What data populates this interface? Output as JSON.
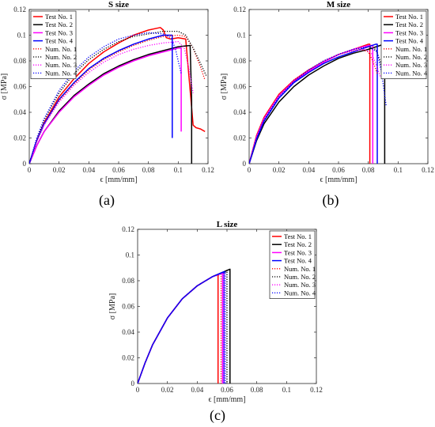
{
  "chart_data": [
    {
      "type": "line",
      "panel_label": "(a)",
      "title": "S size",
      "xlabel": "ϵ [mm/mm]",
      "ylabel": "σ [MPa]",
      "xlim": [
        0,
        0.12
      ],
      "ylim": [
        0,
        0.12
      ],
      "x_ticks": [
        "0",
        "0.02",
        "0.04",
        "0.06",
        "0.08",
        "0.1",
        "0.12"
      ],
      "y_ticks": [
        "0",
        "0.02",
        "0.04",
        "0.06",
        "0.08",
        "0.1",
        "0.12"
      ],
      "legend_position": "top-left",
      "series": [
        {
          "name": "Test No. 1",
          "color": "#ff0000",
          "style": "solid",
          "x": [
            0,
            0.005,
            0.01,
            0.02,
            0.03,
            0.04,
            0.05,
            0.06,
            0.07,
            0.08,
            0.088,
            0.09,
            0.092,
            0.095,
            0.1,
            0.105,
            0.11,
            0.112,
            0.115,
            0.118
          ],
          "y": [
            0,
            0.018,
            0.032,
            0.052,
            0.066,
            0.078,
            0.087,
            0.094,
            0.1,
            0.104,
            0.106,
            0.104,
            0.098,
            0.097,
            0.098,
            0.097,
            0.03,
            0.028,
            0.027,
            0.025
          ]
        },
        {
          "name": "Test No. 2",
          "color": "#000000",
          "style": "solid",
          "x": [
            0,
            0.005,
            0.01,
            0.02,
            0.03,
            0.04,
            0.05,
            0.06,
            0.07,
            0.08,
            0.09,
            0.1,
            0.108,
            0.109,
            0.109
          ],
          "y": [
            0,
            0.014,
            0.025,
            0.041,
            0.053,
            0.062,
            0.07,
            0.076,
            0.081,
            0.085,
            0.088,
            0.091,
            0.092,
            0.05,
            0
          ]
        },
        {
          "name": "Test No. 3",
          "color": "#ff00ff",
          "style": "solid",
          "x": [
            0,
            0.005,
            0.01,
            0.02,
            0.03,
            0.04,
            0.05,
            0.06,
            0.07,
            0.08,
            0.09,
            0.1,
            0.102,
            0.102
          ],
          "y": [
            0,
            0.014,
            0.025,
            0.04,
            0.052,
            0.061,
            0.069,
            0.075,
            0.08,
            0.084,
            0.087,
            0.09,
            0.09,
            0.025
          ]
        },
        {
          "name": "Test No. 4",
          "color": "#0000ff",
          "style": "solid",
          "x": [
            0,
            0.005,
            0.01,
            0.02,
            0.03,
            0.04,
            0.05,
            0.06,
            0.07,
            0.08,
            0.09,
            0.095,
            0.096,
            0.096
          ],
          "y": [
            0,
            0.018,
            0.031,
            0.05,
            0.063,
            0.074,
            0.082,
            0.088,
            0.093,
            0.097,
            0.1,
            0.1,
            0.1,
            0.02
          ]
        },
        {
          "name": "Num. No. 1",
          "color": "#ff0000",
          "style": "dotted",
          "x": [
            0,
            0.005,
            0.01,
            0.02,
            0.03,
            0.04,
            0.05,
            0.06,
            0.07,
            0.08,
            0.09,
            0.1,
            0.105,
            0.11,
            0.115,
            0.118
          ],
          "y": [
            0,
            0.017,
            0.03,
            0.049,
            0.062,
            0.073,
            0.081,
            0.087,
            0.092,
            0.096,
            0.099,
            0.1,
            0.099,
            0.09,
            0.075,
            0.065
          ]
        },
        {
          "name": "Num. No. 2",
          "color": "#000000",
          "style": "dotted",
          "x": [
            0,
            0.005,
            0.01,
            0.02,
            0.03,
            0.04,
            0.05,
            0.06,
            0.07,
            0.08,
            0.09,
            0.1,
            0.105,
            0.11,
            0.115,
            0.119
          ],
          "y": [
            0,
            0.019,
            0.034,
            0.055,
            0.07,
            0.081,
            0.089,
            0.095,
            0.099,
            0.101,
            0.103,
            0.103,
            0.1,
            0.09,
            0.078,
            0.068
          ]
        },
        {
          "name": "Num. No. 3",
          "color": "#ff00ff",
          "style": "dotted",
          "x": [
            0,
            0.005,
            0.01,
            0.02,
            0.03,
            0.04,
            0.05,
            0.06,
            0.07,
            0.08,
            0.09,
            0.1,
            0.104,
            0.107,
            0.11
          ],
          "y": [
            0,
            0.017,
            0.03,
            0.048,
            0.061,
            0.071,
            0.079,
            0.085,
            0.089,
            0.092,
            0.094,
            0.095,
            0.09,
            0.075,
            0.055
          ]
        },
        {
          "name": "Num. No. 4",
          "color": "#0000ff",
          "style": "dotted",
          "x": [
            0,
            0.005,
            0.01,
            0.02,
            0.03,
            0.04,
            0.05,
            0.06,
            0.07,
            0.08,
            0.09,
            0.095,
            0.098,
            0.1,
            0.102
          ],
          "y": [
            0,
            0.02,
            0.035,
            0.057,
            0.072,
            0.083,
            0.091,
            0.097,
            0.1,
            0.102,
            0.101,
            0.098,
            0.09,
            0.08,
            0.07
          ]
        }
      ]
    },
    {
      "type": "line",
      "panel_label": "(b)",
      "title": "M size",
      "xlabel": "ϵ [mm/mm]",
      "ylabel": "σ [MPa]",
      "xlim": [
        0,
        0.12
      ],
      "ylim": [
        0,
        0.12
      ],
      "x_ticks": [
        "0",
        "0.02",
        "0.04",
        "0.06",
        "0.08",
        "0.1",
        "0.12"
      ],
      "y_ticks": [
        "0",
        "0.02",
        "0.04",
        "0.06",
        "0.08",
        "0.1",
        "0.12"
      ],
      "legend_position": "top-right",
      "series": [
        {
          "name": "Test No. 1",
          "color": "#ff0000",
          "style": "solid",
          "x": [
            0,
            0.005,
            0.01,
            0.02,
            0.03,
            0.04,
            0.05,
            0.06,
            0.07,
            0.08,
            0.081,
            0.081
          ],
          "y": [
            0,
            0.022,
            0.036,
            0.054,
            0.065,
            0.073,
            0.079,
            0.085,
            0.089,
            0.093,
            0.093,
            0
          ]
        },
        {
          "name": "Test No. 2",
          "color": "#000000",
          "style": "solid",
          "x": [
            0,
            0.005,
            0.01,
            0.02,
            0.03,
            0.04,
            0.05,
            0.06,
            0.07,
            0.08,
            0.088,
            0.09,
            0.091,
            0.091
          ],
          "y": [
            0,
            0.018,
            0.031,
            0.048,
            0.06,
            0.069,
            0.076,
            0.082,
            0.086,
            0.089,
            0.092,
            0.093,
            0.093,
            0
          ]
        },
        {
          "name": "Test No. 3",
          "color": "#ff00ff",
          "style": "solid",
          "x": [
            0,
            0.005,
            0.01,
            0.02,
            0.03,
            0.04,
            0.05,
            0.06,
            0.07,
            0.08,
            0.083,
            0.083
          ],
          "y": [
            0,
            0.021,
            0.035,
            0.053,
            0.064,
            0.072,
            0.079,
            0.085,
            0.089,
            0.092,
            0.092,
            0
          ]
        },
        {
          "name": "Test No. 4",
          "color": "#0000ff",
          "style": "solid",
          "x": [
            0,
            0.005,
            0.01,
            0.02,
            0.03,
            0.04,
            0.05,
            0.06,
            0.07,
            0.08,
            0.085,
            0.086,
            0.086
          ],
          "y": [
            0,
            0.019,
            0.033,
            0.051,
            0.063,
            0.071,
            0.078,
            0.083,
            0.087,
            0.091,
            0.093,
            0.093,
            0
          ]
        },
        {
          "name": "Num. No. 1",
          "color": "#ff0000",
          "style": "dotted",
          "x": [
            0,
            0.005,
            0.01,
            0.02,
            0.03,
            0.04,
            0.05,
            0.06,
            0.07,
            0.075,
            0.08,
            0.083,
            0.086
          ],
          "y": [
            0,
            0.022,
            0.036,
            0.054,
            0.065,
            0.073,
            0.08,
            0.085,
            0.088,
            0.089,
            0.087,
            0.08,
            0.07
          ]
        },
        {
          "name": "Num. No. 2",
          "color": "#000000",
          "style": "dotted",
          "x": [
            0,
            0.005,
            0.01,
            0.02,
            0.03,
            0.04,
            0.05,
            0.06,
            0.07,
            0.08,
            0.085,
            0.088,
            0.09
          ],
          "y": [
            0,
            0.02,
            0.034,
            0.052,
            0.064,
            0.073,
            0.08,
            0.085,
            0.089,
            0.091,
            0.089,
            0.08,
            0.065
          ]
        },
        {
          "name": "Num. No. 3",
          "color": "#ff00ff",
          "style": "dotted",
          "x": [
            0,
            0.005,
            0.01,
            0.02,
            0.03,
            0.04,
            0.05,
            0.06,
            0.07,
            0.078,
            0.082,
            0.085,
            0.088
          ],
          "y": [
            0,
            0.021,
            0.035,
            0.053,
            0.065,
            0.073,
            0.08,
            0.085,
            0.088,
            0.089,
            0.086,
            0.078,
            0.068
          ]
        },
        {
          "name": "Num. No. 4",
          "color": "#0000ff",
          "style": "dotted",
          "x": [
            0,
            0.005,
            0.01,
            0.02,
            0.03,
            0.04,
            0.05,
            0.06,
            0.07,
            0.08,
            0.086,
            0.089,
            0.092
          ],
          "y": [
            0,
            0.02,
            0.034,
            0.052,
            0.064,
            0.073,
            0.08,
            0.085,
            0.089,
            0.091,
            0.087,
            0.07,
            0.045
          ]
        }
      ]
    },
    {
      "type": "line",
      "panel_label": "(c)",
      "title": "L size",
      "xlabel": "ϵ [mm/mm]",
      "ylabel": "σ [MPa]",
      "xlim": [
        0,
        0.12
      ],
      "ylim": [
        0,
        0.12
      ],
      "x_ticks": [
        "0",
        "0.02",
        "0.04",
        "0.06",
        "0.08",
        "0.1",
        "0.12"
      ],
      "y_ticks": [
        "0",
        "0.02",
        "0.04",
        "0.06",
        "0.08",
        "0.1",
        "0.12"
      ],
      "legend_position": "top-right",
      "series": [
        {
          "name": "Test No. 1",
          "color": "#ff0000",
          "style": "solid",
          "x": [
            0,
            0.005,
            0.01,
            0.02,
            0.03,
            0.04,
            0.05,
            0.054,
            0.054
          ],
          "y": [
            0,
            0.016,
            0.03,
            0.051,
            0.066,
            0.076,
            0.083,
            0.085,
            0
          ]
        },
        {
          "name": "Test No. 2",
          "color": "#000000",
          "style": "solid",
          "x": [
            0,
            0.005,
            0.01,
            0.02,
            0.03,
            0.04,
            0.05,
            0.06,
            0.062,
            0.062
          ],
          "y": [
            0,
            0.016,
            0.03,
            0.051,
            0.066,
            0.076,
            0.083,
            0.088,
            0.089,
            0
          ]
        },
        {
          "name": "Test No. 3",
          "color": "#ff00ff",
          "style": "solid",
          "x": [
            0,
            0.005,
            0.01,
            0.02,
            0.03,
            0.04,
            0.05,
            0.057,
            0.057
          ],
          "y": [
            0,
            0.016,
            0.03,
            0.051,
            0.066,
            0.076,
            0.083,
            0.086,
            0
          ]
        },
        {
          "name": "Test No. 4",
          "color": "#0000ff",
          "style": "solid",
          "x": [
            0,
            0.005,
            0.01,
            0.02,
            0.03,
            0.04,
            0.05,
            0.058,
            0.058
          ],
          "y": [
            0,
            0.016,
            0.03,
            0.051,
            0.066,
            0.076,
            0.083,
            0.087,
            0
          ]
        },
        {
          "name": "Num. No. 1",
          "color": "#ff0000",
          "style": "dotted",
          "x": [
            0,
            0.005,
            0.01,
            0.02,
            0.03,
            0.04,
            0.05,
            0.056,
            0.056
          ],
          "y": [
            0,
            0.016,
            0.03,
            0.051,
            0.066,
            0.076,
            0.083,
            0.085,
            0
          ]
        },
        {
          "name": "Num. No. 2",
          "color": "#000000",
          "style": "dotted",
          "x": [
            0,
            0.005,
            0.01,
            0.02,
            0.03,
            0.04,
            0.05,
            0.06,
            0.06
          ],
          "y": [
            0,
            0.016,
            0.03,
            0.051,
            0.066,
            0.076,
            0.083,
            0.087,
            0
          ]
        },
        {
          "name": "Num. No. 3",
          "color": "#ff00ff",
          "style": "dotted",
          "x": [
            0,
            0.005,
            0.01,
            0.02,
            0.03,
            0.04,
            0.05,
            0.058,
            0.058
          ],
          "y": [
            0,
            0.016,
            0.03,
            0.051,
            0.066,
            0.076,
            0.083,
            0.086,
            0
          ]
        },
        {
          "name": "Num. No. 4",
          "color": "#0000ff",
          "style": "dotted",
          "x": [
            0,
            0.005,
            0.01,
            0.02,
            0.03,
            0.04,
            0.05,
            0.059,
            0.059
          ],
          "y": [
            0,
            0.016,
            0.03,
            0.051,
            0.066,
            0.076,
            0.083,
            0.087,
            0
          ]
        }
      ]
    }
  ]
}
